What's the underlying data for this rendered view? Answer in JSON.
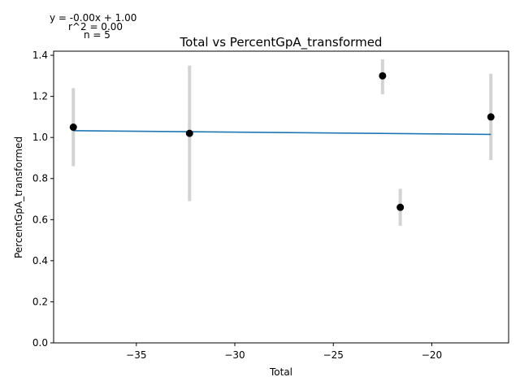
{
  "chart_data": {
    "type": "scatter",
    "title": "Total vs PercentGpA_transformed",
    "xlabel": "Total",
    "ylabel": "PercentGpA_transformed",
    "xlim": [
      -39.2,
      -16.1
    ],
    "ylim": [
      0.0,
      1.42
    ],
    "xticks": [
      -35,
      -30,
      -25,
      -20
    ],
    "yticks": [
      0.0,
      0.2,
      0.4,
      0.6,
      0.8,
      1.0,
      1.2,
      1.4
    ],
    "points": [
      {
        "x": -38.2,
        "y": 1.05,
        "err_low": 0.86,
        "err_high": 1.24
      },
      {
        "x": -32.3,
        "y": 1.02,
        "err_low": 0.69,
        "err_high": 1.35
      },
      {
        "x": -22.5,
        "y": 1.3,
        "err_low": 1.21,
        "err_high": 1.38
      },
      {
        "x": -21.6,
        "y": 0.66,
        "err_low": 0.57,
        "err_high": 0.75
      },
      {
        "x": -17.0,
        "y": 1.1,
        "err_low": 0.89,
        "err_high": 1.31
      }
    ],
    "fit_line": {
      "x": [
        -38.2,
        -17.0
      ],
      "y": [
        1.033,
        1.015
      ]
    },
    "annotations": [
      "y = -0.00x + 1.00",
      "r^2 = 0.00",
      "n = 5"
    ],
    "colors": {
      "points": "#000000",
      "errorbars": "#d3d3d3",
      "fit": "#1f77b4"
    }
  }
}
